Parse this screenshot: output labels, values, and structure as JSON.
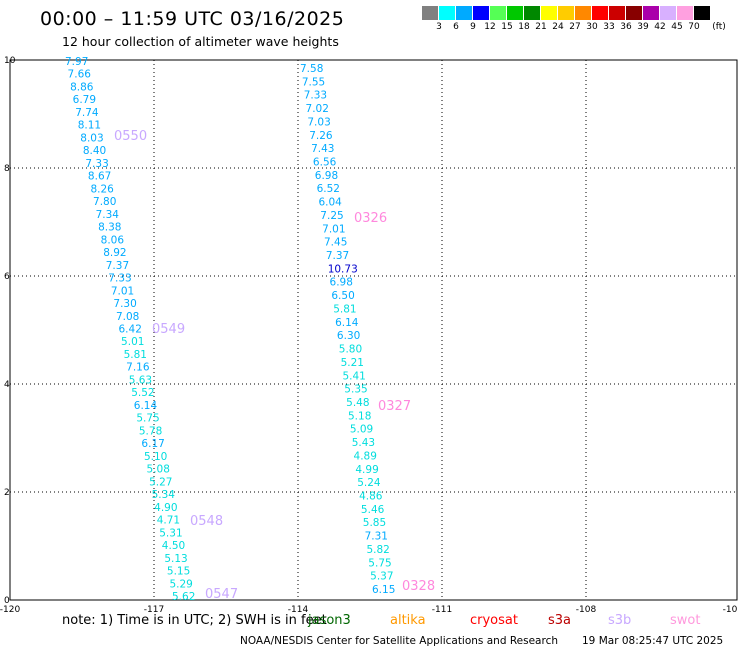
{
  "header": {
    "title": "00:00 – 11:59 UTC 03/16/2025",
    "subtitle": "12 hour collection of altimeter wave heights"
  },
  "color_scale": {
    "unit_label": "(ft)",
    "labels": [
      "3",
      "6",
      "9",
      "12",
      "15",
      "18",
      "21",
      "24",
      "27",
      "30",
      "33",
      "36",
      "39",
      "42",
      "45",
      "70"
    ],
    "colors": [
      "#808080",
      "#00ffff",
      "#00aaff",
      "#0000ff",
      "#55ff55",
      "#00c800",
      "#008800",
      "#ffff00",
      "#ffcc00",
      "#ff8800",
      "#ff0000",
      "#cc0000",
      "#880000",
      "#aa00aa",
      "#d8b0ff",
      "#ffa0e0",
      "#000000"
    ]
  },
  "map": {
    "x_ticks": [
      "-120",
      "-117",
      "-114",
      "-111",
      "-108",
      "-10"
    ],
    "y_ticks": [
      "10",
      "8",
      "6",
      "4",
      "2",
      "0"
    ],
    "tracks": [
      {
        "pass_labels": [
          {
            "text": "0550",
            "color": "#c8a8ff"
          },
          {
            "text": "0549",
            "color": "#c8a8ff"
          },
          {
            "text": "0548",
            "color": "#c8a8ff"
          },
          {
            "text": "0547",
            "color": "#c8a8ff"
          }
        ],
        "values": [
          "7.97",
          "7.66",
          "8.86",
          "6.79",
          "7.74",
          "8.11",
          "8.03",
          "8.40",
          "7.33",
          "8.67",
          "8.26",
          "7.80",
          "7.34",
          "8.38",
          "8.06",
          "8.92",
          "7.37",
          "7.33",
          "7.01",
          "7.30",
          "7.08",
          "6.42",
          "5.01",
          "5.81",
          "7.16",
          "5.63",
          "5.52",
          "6.14",
          "5.75",
          "5.78",
          "6.17",
          "5.10",
          "5.08",
          "5.27",
          "5.34",
          "4.90",
          "4.71",
          "5.31",
          "4.50",
          "5.13",
          "5.15",
          "5.29",
          "5.62"
        ],
        "colors": [
          "#00aaff",
          "#00aaff",
          "#00aaff",
          "#00aaff",
          "#00aaff",
          "#00aaff",
          "#00aaff",
          "#00aaff",
          "#00aaff",
          "#00aaff",
          "#00aaff",
          "#00aaff",
          "#00aaff",
          "#00aaff",
          "#00aaff",
          "#00aaff",
          "#00aaff",
          "#00aaff",
          "#00aaff",
          "#00aaff",
          "#00aaff",
          "#00aaff",
          "#00dddd",
          "#00dddd",
          "#00aaff",
          "#00dddd",
          "#00dddd",
          "#00aaff",
          "#00dddd",
          "#00dddd",
          "#00aaff",
          "#00dddd",
          "#00dddd",
          "#00dddd",
          "#00dddd",
          "#00dddd",
          "#00dddd",
          "#00dddd",
          "#00dddd",
          "#00dddd",
          "#00dddd",
          "#00dddd",
          "#00dddd"
        ]
      },
      {
        "pass_labels": [
          {
            "text": "0326",
            "color": "#ff88dd"
          },
          {
            "text": "0327",
            "color": "#ff88dd"
          },
          {
            "text": "0328",
            "color": "#ff88dd"
          }
        ],
        "values": [
          "7.58",
          "7.55",
          "7.33",
          "7.02",
          "7.03",
          "7.26",
          "7.43",
          "6.56",
          "6.98",
          "6.52",
          "6.04",
          "7.25",
          "7.01",
          "7.45",
          "7.37",
          "10.73",
          "6.98",
          "6.50",
          "5.81",
          "6.14",
          "6.30",
          "5.80",
          "5.21",
          "5.41",
          "5.35",
          "5.48",
          "5.18",
          "5.09",
          "5.43",
          "4.89",
          "4.99",
          "5.24",
          "4.86",
          "5.46",
          "5.85",
          "7.31",
          "5.82",
          "5.75",
          "5.37",
          "6.15"
        ],
        "colors": [
          "#00aaff",
          "#00aaff",
          "#00aaff",
          "#00aaff",
          "#00aaff",
          "#00aaff",
          "#00aaff",
          "#00aaff",
          "#00aaff",
          "#00aaff",
          "#00aaff",
          "#00aaff",
          "#00aaff",
          "#00aaff",
          "#00aaff",
          "#0000cc",
          "#00aaff",
          "#00aaff",
          "#00dddd",
          "#00aaff",
          "#00aaff",
          "#00dddd",
          "#00dddd",
          "#00dddd",
          "#00dddd",
          "#00dddd",
          "#00dddd",
          "#00dddd",
          "#00dddd",
          "#00dddd",
          "#00dddd",
          "#00dddd",
          "#00dddd",
          "#00dddd",
          "#00dddd",
          "#00aaff",
          "#00dddd",
          "#00dddd",
          "#00dddd",
          "#00aaff"
        ]
      }
    ]
  },
  "footer": {
    "note": "note: 1) Time is in UTC; 2) SWH is in feet",
    "satellites": [
      {
        "name": "jason3",
        "color": "#006600"
      },
      {
        "name": "altika",
        "color": "#ff9900"
      },
      {
        "name": "cryosat",
        "color": "#ff0000"
      },
      {
        "name": "s3a",
        "color": "#bb0000"
      },
      {
        "name": "s3b",
        "color": "#c8a8ff"
      },
      {
        "name": "swot",
        "color": "#ff99dd"
      }
    ],
    "credit": "NOAA/NESDIS Center for Satellite Applications and Research",
    "generated": "19 Mar 08:25:47 UTC 2025"
  }
}
